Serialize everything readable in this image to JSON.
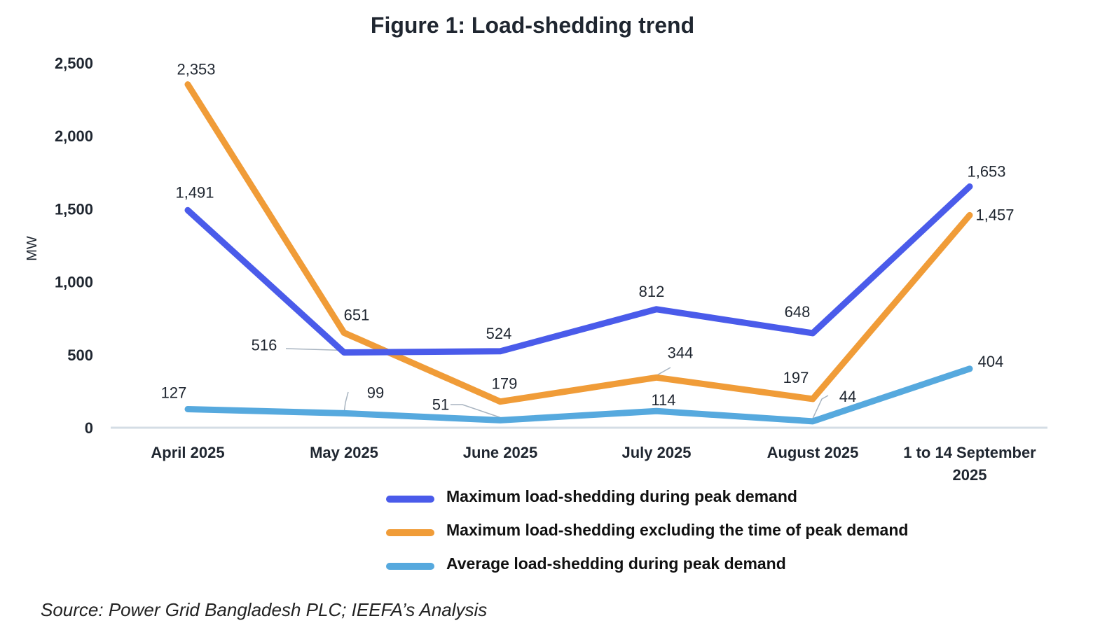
{
  "chart_data": {
    "type": "line",
    "title": "Figure 1: Load-shedding trend",
    "xlabel": "",
    "ylabel": "MW",
    "ylim": [
      0,
      2500
    ],
    "yticks": [
      0,
      500,
      1000,
      1500,
      2000,
      2500
    ],
    "ytick_labels": [
      "0",
      "500",
      "1,000",
      "1,500",
      "2,000",
      "2,500"
    ],
    "grid": false,
    "categories": [
      "April 2025",
      "May 2025",
      "June 2025",
      "July 2025",
      "August 2025",
      "1 to 14 September 2025"
    ],
    "category_lines": [
      [
        "April 2025"
      ],
      [
        "May 2025"
      ],
      [
        "June 2025"
      ],
      [
        "July 2025"
      ],
      [
        "August 2025"
      ],
      [
        "1 to 14 September",
        "2025"
      ]
    ],
    "series": [
      {
        "name": "Maximum load-shedding during peak demand",
        "color": "#4a5bea",
        "values": [
          1491,
          516,
          524,
          812,
          648,
          1653
        ],
        "labels": [
          "1,491",
          "516",
          "524",
          "812",
          "648",
          "1,653"
        ]
      },
      {
        "name": "Maximum load-shedding excluding the time of peak demand",
        "color": "#f09c38",
        "values": [
          2353,
          651,
          179,
          344,
          197,
          1457
        ],
        "labels": [
          "2,353",
          "651",
          "179",
          "344",
          "197",
          "1,457"
        ]
      },
      {
        "name": "Average load-shedding during peak demand",
        "color": "#56a9de",
        "values": [
          127,
          99,
          51,
          114,
          44,
          404
        ],
        "labels": [
          "127",
          "99",
          "51",
          "114",
          "44",
          "404"
        ]
      }
    ],
    "legend_position": "bottom-right",
    "source": "Source: Power Grid Bangladesh PLC; IEEFA’s Analysis"
  }
}
